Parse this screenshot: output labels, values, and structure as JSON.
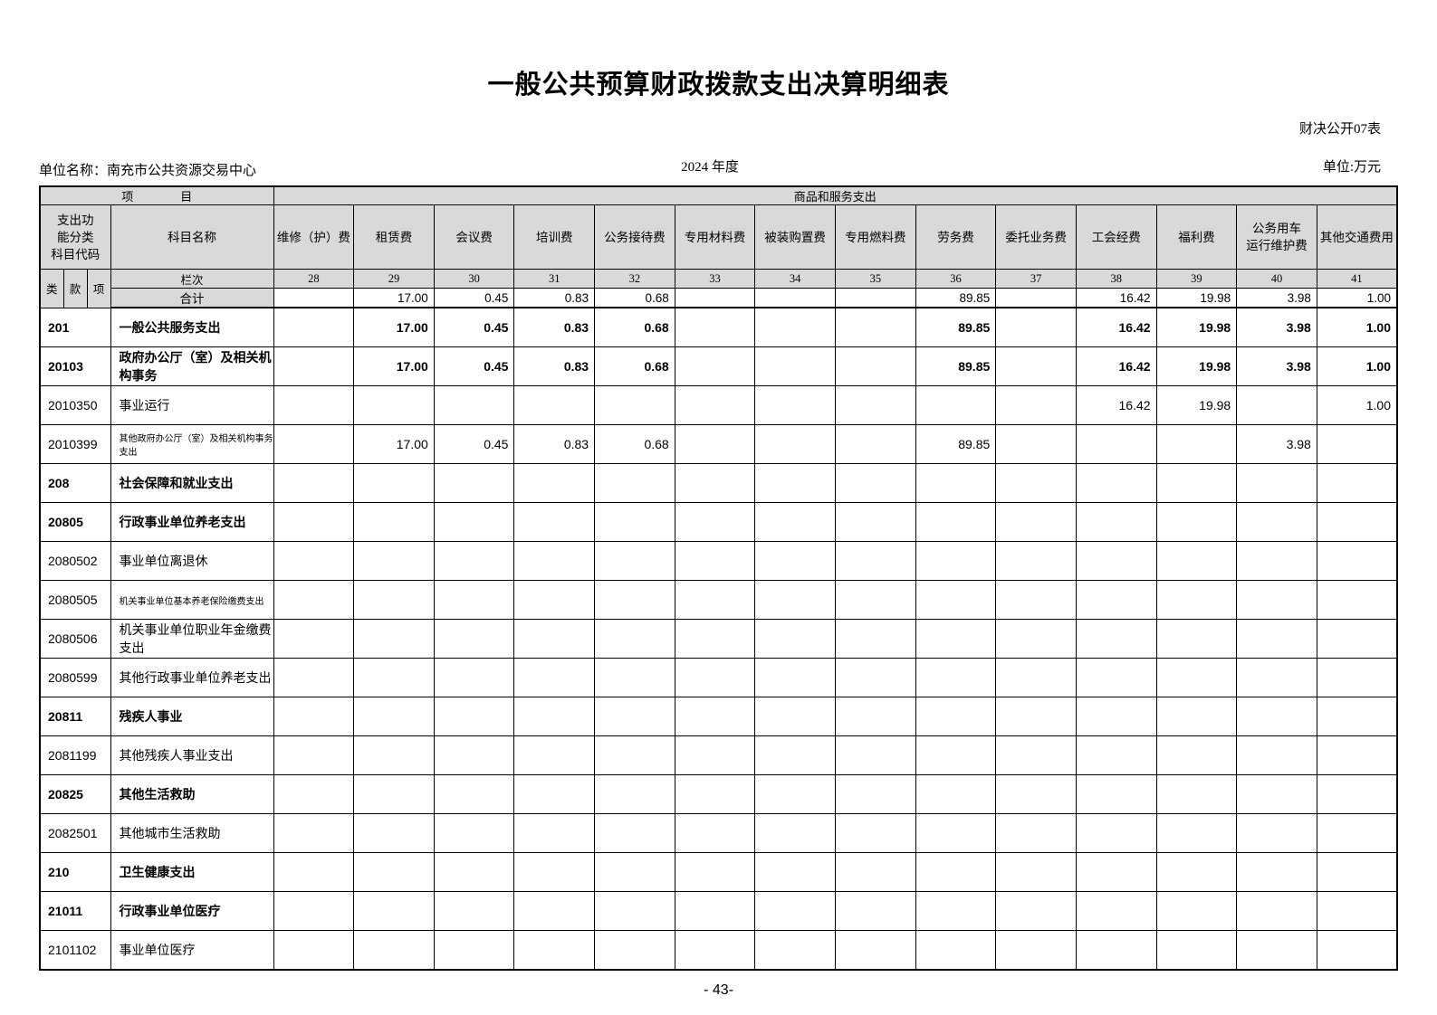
{
  "page": {
    "title": "一般公共预算财政拨款支出决算明细表",
    "form_label": "财决公开07表",
    "unit_name": "单位名称：南充市公共资源交易中心",
    "year": "2024 年度",
    "unit_label": "单位:万元",
    "page_number": "- 43-"
  },
  "table": {
    "header": {
      "item_label": "项　　　　目",
      "category_label": "商品和服务支出",
      "code_label": "支出功\n能分类\n科目代码",
      "subject_label": "科目名称",
      "sub_code_labels": [
        "类",
        "款",
        "项"
      ],
      "row_index_label": "栏次",
      "total_label": "合计",
      "columns": [
        {
          "label": "维修（护）费",
          "index": "28"
        },
        {
          "label": "租赁费",
          "index": "29"
        },
        {
          "label": "会议费",
          "index": "30"
        },
        {
          "label": "培训费",
          "index": "31"
        },
        {
          "label": "公务接待费",
          "index": "32"
        },
        {
          "label": "专用材料费",
          "index": "33"
        },
        {
          "label": "被装购置费",
          "index": "34"
        },
        {
          "label": "专用燃料费",
          "index": "35"
        },
        {
          "label": "劳务费",
          "index": "36"
        },
        {
          "label": "委托业务费",
          "index": "37"
        },
        {
          "label": "工会经费",
          "index": "38"
        },
        {
          "label": "福利费",
          "index": "39"
        },
        {
          "label": "公务用车\n运行维护费",
          "index": "40"
        },
        {
          "label": "其他交通费用",
          "index": "41"
        }
      ]
    },
    "total_row": {
      "values": [
        "",
        "17.00",
        "0.45",
        "0.83",
        "0.68",
        "",
        "",
        "",
        "89.85",
        "",
        "16.42",
        "19.98",
        "3.98",
        "1.00"
      ]
    },
    "rows": [
      {
        "code": "201",
        "name": "一般公共服务支出",
        "bold": true,
        "small": false,
        "values": [
          "",
          "17.00",
          "0.45",
          "0.83",
          "0.68",
          "",
          "",
          "",
          "89.85",
          "",
          "16.42",
          "19.98",
          "3.98",
          "1.00"
        ]
      },
      {
        "code": "20103",
        "name": "政府办公厅（室）及相关机构事务",
        "bold": true,
        "small": false,
        "values": [
          "",
          "17.00",
          "0.45",
          "0.83",
          "0.68",
          "",
          "",
          "",
          "89.85",
          "",
          "16.42",
          "19.98",
          "3.98",
          "1.00"
        ]
      },
      {
        "code": "2010350",
        "name": "事业运行",
        "bold": false,
        "small": false,
        "values": [
          "",
          "",
          "",
          "",
          "",
          "",
          "",
          "",
          "",
          "",
          "16.42",
          "19.98",
          "",
          "1.00"
        ]
      },
      {
        "code": "2010399",
        "name": "其他政府办公厅（室）及相关机构事务支出",
        "bold": false,
        "small": true,
        "values": [
          "",
          "17.00",
          "0.45",
          "0.83",
          "0.68",
          "",
          "",
          "",
          "89.85",
          "",
          "",
          "",
          "3.98",
          ""
        ]
      },
      {
        "code": "208",
        "name": "社会保障和就业支出",
        "bold": true,
        "small": false,
        "values": [
          "",
          "",
          "",
          "",
          "",
          "",
          "",
          "",
          "",
          "",
          "",
          "",
          "",
          ""
        ]
      },
      {
        "code": "20805",
        "name": "行政事业单位养老支出",
        "bold": true,
        "small": false,
        "values": [
          "",
          "",
          "",
          "",
          "",
          "",
          "",
          "",
          "",
          "",
          "",
          "",
          "",
          ""
        ]
      },
      {
        "code": "2080502",
        "name": "事业单位离退休",
        "bold": false,
        "small": false,
        "values": [
          "",
          "",
          "",
          "",
          "",
          "",
          "",
          "",
          "",
          "",
          "",
          "",
          "",
          ""
        ]
      },
      {
        "code": "2080505",
        "name": "机关事业单位基本养老保险缴费支出",
        "bold": false,
        "small": true,
        "values": [
          "",
          "",
          "",
          "",
          "",
          "",
          "",
          "",
          "",
          "",
          "",
          "",
          "",
          ""
        ]
      },
      {
        "code": "2080506",
        "name": "机关事业单位职业年金缴费支出",
        "bold": false,
        "small": false,
        "values": [
          "",
          "",
          "",
          "",
          "",
          "",
          "",
          "",
          "",
          "",
          "",
          "",
          "",
          ""
        ]
      },
      {
        "code": "2080599",
        "name": "其他行政事业单位养老支出",
        "bold": false,
        "small": false,
        "values": [
          "",
          "",
          "",
          "",
          "",
          "",
          "",
          "",
          "",
          "",
          "",
          "",
          "",
          ""
        ]
      },
      {
        "code": "20811",
        "name": "残疾人事业",
        "bold": true,
        "small": false,
        "values": [
          "",
          "",
          "",
          "",
          "",
          "",
          "",
          "",
          "",
          "",
          "",
          "",
          "",
          ""
        ]
      },
      {
        "code": "2081199",
        "name": "其他残疾人事业支出",
        "bold": false,
        "small": false,
        "values": [
          "",
          "",
          "",
          "",
          "",
          "",
          "",
          "",
          "",
          "",
          "",
          "",
          "",
          ""
        ]
      },
      {
        "code": "20825",
        "name": "其他生活救助",
        "bold": true,
        "small": false,
        "values": [
          "",
          "",
          "",
          "",
          "",
          "",
          "",
          "",
          "",
          "",
          "",
          "",
          "",
          ""
        ]
      },
      {
        "code": "2082501",
        "name": "其他城市生活救助",
        "bold": false,
        "small": false,
        "values": [
          "",
          "",
          "",
          "",
          "",
          "",
          "",
          "",
          "",
          "",
          "",
          "",
          "",
          ""
        ]
      },
      {
        "code": "210",
        "name": "卫生健康支出",
        "bold": true,
        "small": false,
        "values": [
          "",
          "",
          "",
          "",
          "",
          "",
          "",
          "",
          "",
          "",
          "",
          "",
          "",
          ""
        ]
      },
      {
        "code": "21011",
        "name": "行政事业单位医疗",
        "bold": true,
        "small": false,
        "values": [
          "",
          "",
          "",
          "",
          "",
          "",
          "",
          "",
          "",
          "",
          "",
          "",
          "",
          ""
        ]
      },
      {
        "code": "2101102",
        "name": "事业单位医疗",
        "bold": false,
        "small": false,
        "values": [
          "",
          "",
          "",
          "",
          "",
          "",
          "",
          "",
          "",
          "",
          "",
          "",
          "",
          ""
        ]
      }
    ]
  }
}
